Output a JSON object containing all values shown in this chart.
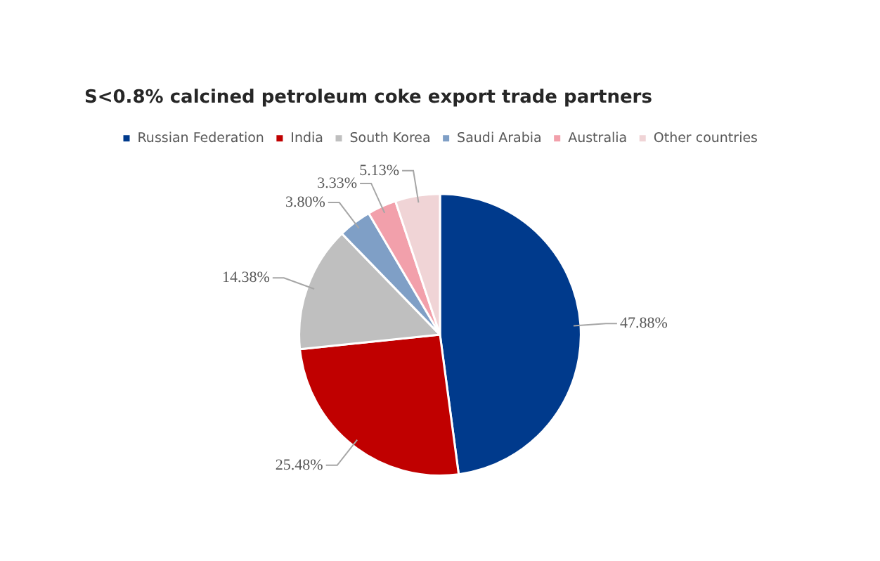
{
  "chart_data": {
    "type": "pie",
    "title": "S<0.8% calcined petroleum coke export trade partners",
    "categories": [
      "Russian Federation",
      "India",
      "South Korea",
      "Saudi Arabia",
      "Australia",
      "Other countries"
    ],
    "values": [
      47.88,
      25.48,
      14.38,
      3.8,
      3.33,
      5.13
    ],
    "value_labels": [
      "47.88%",
      "25.48%",
      "14.38%",
      "3.80%",
      "3.33%",
      "5.13%"
    ],
    "colors": [
      "#003a8c",
      "#c00000",
      "#bfbfbf",
      "#7f9fc6",
      "#f2a0ab",
      "#f0d4d6"
    ],
    "legend": "top"
  }
}
